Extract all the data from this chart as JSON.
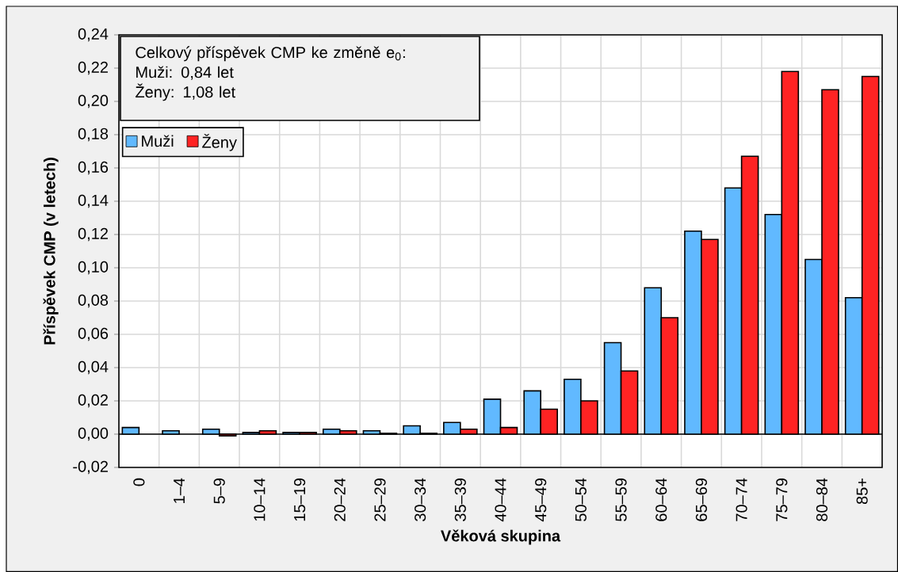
{
  "chart_data": {
    "type": "bar",
    "xlabel": "Věková skupina",
    "ylabel": "Příspěvek CMP (v letech)",
    "annotations": [
      "Celkový příspěvek CMP ke změně e$_{0}$:",
      "Muži: 0,84 let",
      "Ženy: 1,08 let"
    ],
    "categories": [
      "0",
      "1–4",
      "5–9",
      "10–14",
      "15–19",
      "20–24",
      "25–29",
      "30–34",
      "35–39",
      "40–44",
      "45–49",
      "50–54",
      "55–59",
      "60–64",
      "65–69",
      "70–74",
      "75–79",
      "80–84",
      "85+"
    ],
    "series": [
      {
        "name": "Muži",
        "color": "#61b9ff",
        "values": [
          0.004,
          0.002,
          0.003,
          0.001,
          0.001,
          0.003,
          0.002,
          0.005,
          0.007,
          0.021,
          0.026,
          0.033,
          0.055,
          0.088,
          0.122,
          0.148,
          0.132,
          0.105,
          0.082
        ]
      },
      {
        "name": "Ženy",
        "color": "#ff2323",
        "values": [
          null,
          null,
          -0.001,
          0.002,
          0.001,
          0.002,
          0.0005,
          0.0005,
          0.003,
          0.004,
          0.015,
          0.02,
          0.038,
          0.07,
          0.117,
          0.167,
          0.218,
          0.207,
          0.215
        ]
      }
    ],
    "ylim": [
      -0.02,
      0.24
    ],
    "yticks": [
      {
        "value": -0.02,
        "label": "-0,02"
      },
      {
        "value": 0.0,
        "label": "0,00"
      },
      {
        "value": 0.02,
        "label": "0,02"
      },
      {
        "value": 0.04,
        "label": "0,04"
      },
      {
        "value": 0.06,
        "label": "0,06"
      },
      {
        "value": 0.08,
        "label": "0,08"
      },
      {
        "value": 0.1,
        "label": "0,10"
      },
      {
        "value": 0.12,
        "label": "0,12"
      },
      {
        "value": 0.14,
        "label": "0,14"
      },
      {
        "value": 0.16,
        "label": "0,16"
      },
      {
        "value": 0.18,
        "label": "0,18"
      },
      {
        "value": 0.2,
        "label": "0,20"
      },
      {
        "value": 0.22,
        "label": "0,22"
      },
      {
        "value": 0.24,
        "label": "0,24"
      }
    ],
    "grid": true,
    "legend": "top left"
  }
}
